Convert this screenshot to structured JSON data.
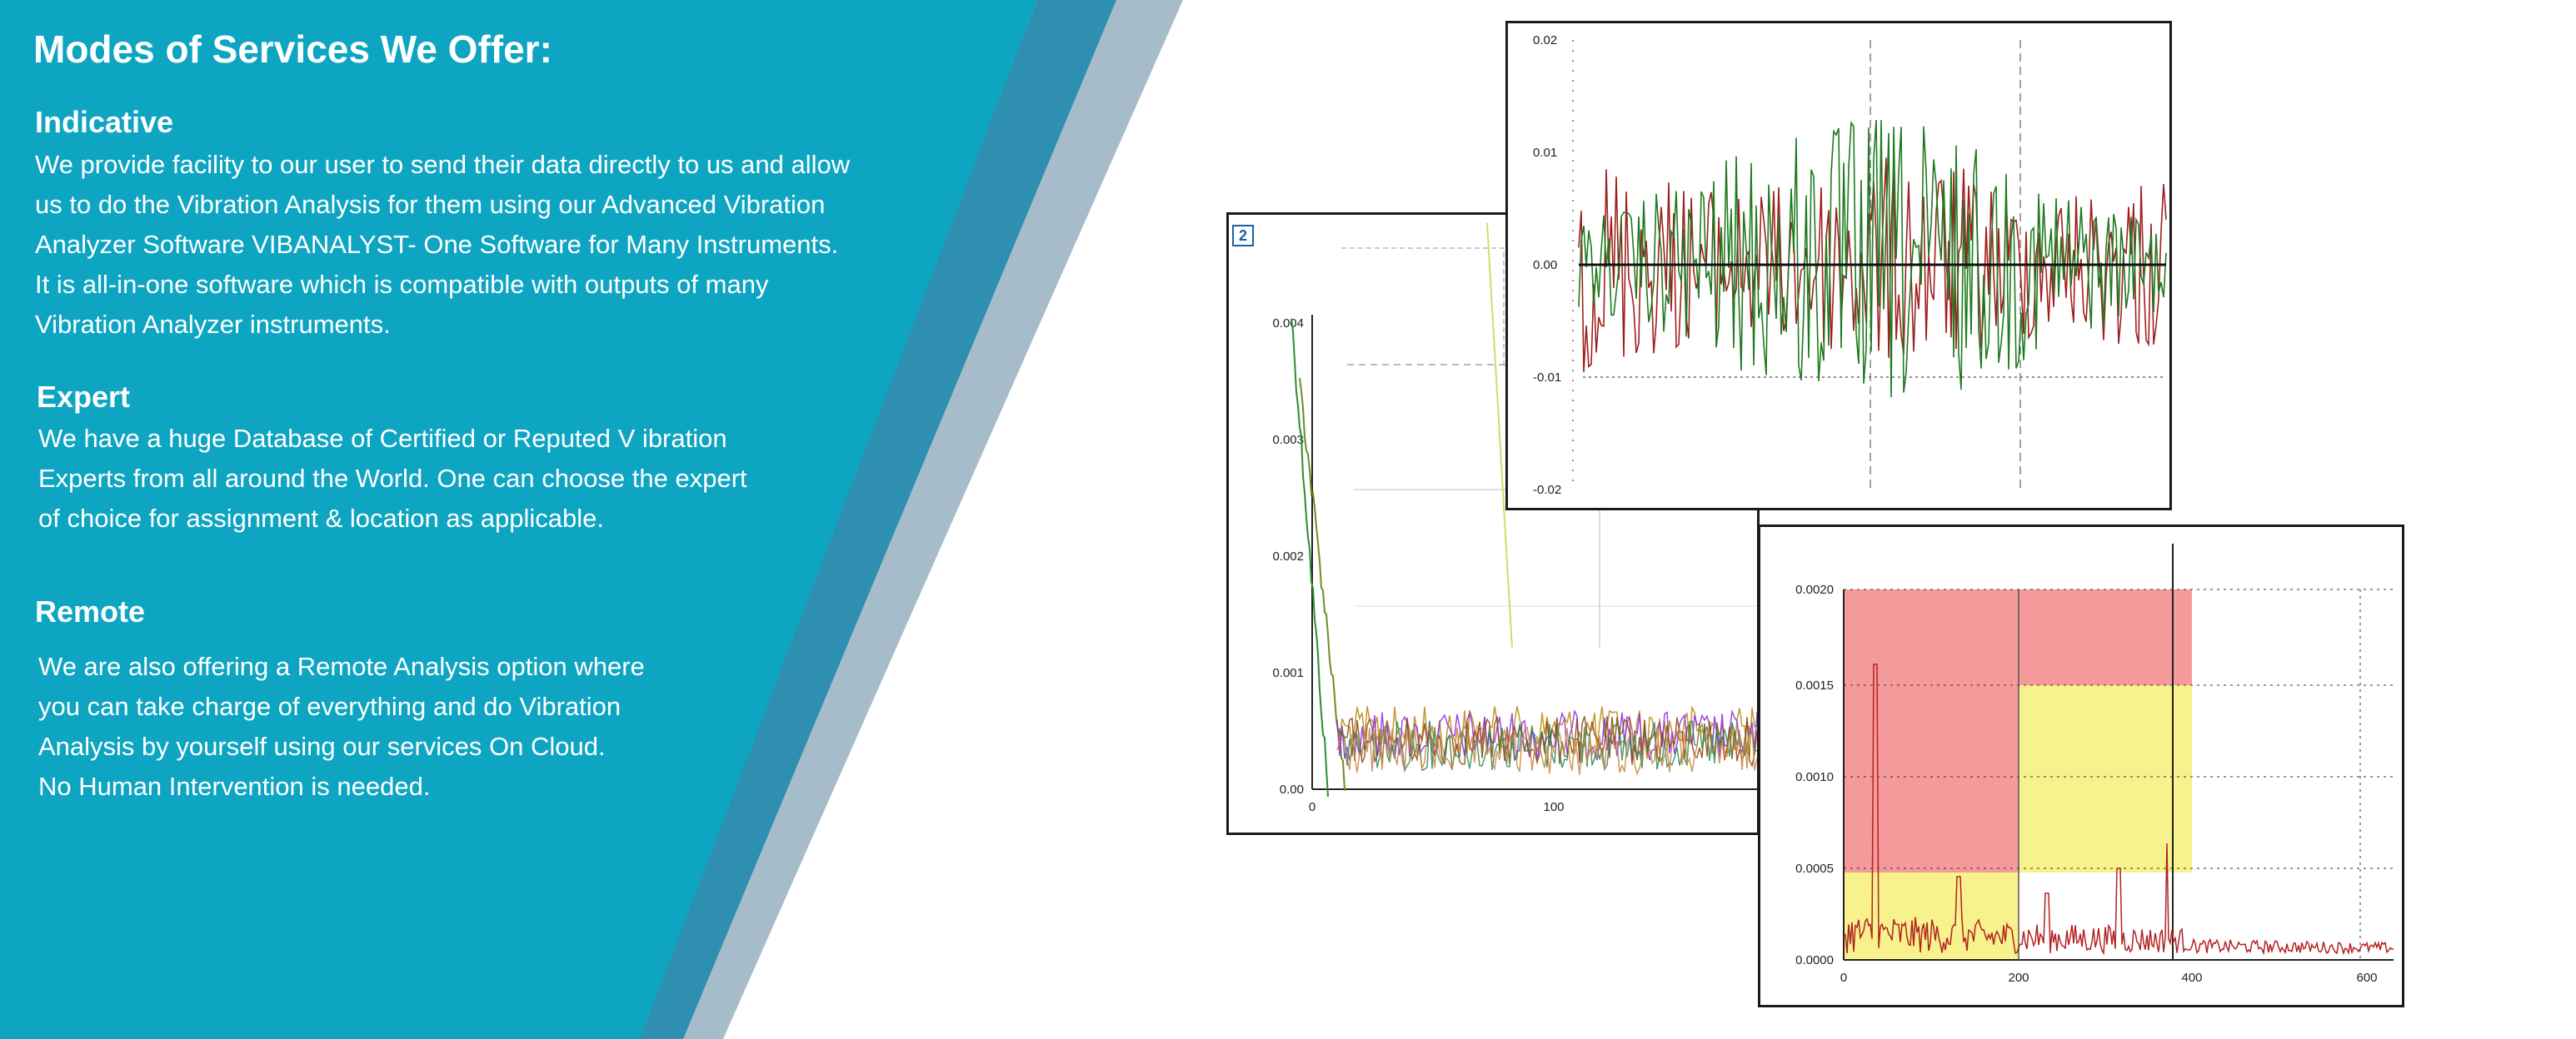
{
  "banner": {
    "title": "Modes of Services We Offer:",
    "sections": [
      {
        "heading": "Indicative",
        "lines": [
          "We provide facility to our user to send their data directly to us and allow",
          "us to do the Vibration Analysis for them using our Advanced Vibration",
          "Analyzer Software VIBANALYST- One Software for Many Instruments.",
          "It is all-in-one software which is compatible with outputs of many",
          "Vibration Analyzer instruments."
        ]
      },
      {
        "heading": "Expert",
        "lines": [
          "We have a huge Database  of  Certified  or  Reputed V ibration",
          "Experts from all around the World. One can choose the expert",
          "of choice for assignment & location as applicable."
        ]
      },
      {
        "heading": "Remote",
        "lines": [
          "We are also offering a Remote Analysis option where",
          "you can take charge of everything and do Vibration",
          "Analysis by yourself using our services On Cloud.",
          "No Human Intervention is needed."
        ]
      }
    ]
  },
  "colors": {
    "banner_teal": "#0ea5c2",
    "stripe_dark": "#2f8fb0",
    "stripe_light": "#a6bccb",
    "series_green": "#1f7a1f",
    "series_red": "#a01f1f",
    "zone_red": "#f59a9a",
    "zone_yellow": "#f7f28c"
  },
  "chart_data": [
    {
      "type": "line",
      "description_role": "spectrum-left",
      "y_ticks": [
        "0.00",
        "0.001",
        "0.002",
        "0.003",
        "0.004"
      ],
      "x_ticks": [
        "0",
        "100"
      ]
    },
    {
      "type": "line",
      "description_role": "waveform-top",
      "y_ticks": [
        "0.02",
        "0.01",
        "0.00",
        "-0.01",
        "-0.02"
      ],
      "ylim": [
        -0.02,
        0.02
      ]
    },
    {
      "type": "area",
      "description_role": "spectrum-zones",
      "y_ticks": [
        "0.0000",
        "0.0005",
        "0.0010",
        "0.0015",
        "0.0020"
      ],
      "x_ticks": [
        "0",
        "200",
        "400",
        "600"
      ],
      "ylim": [
        0,
        0.002
      ]
    }
  ]
}
